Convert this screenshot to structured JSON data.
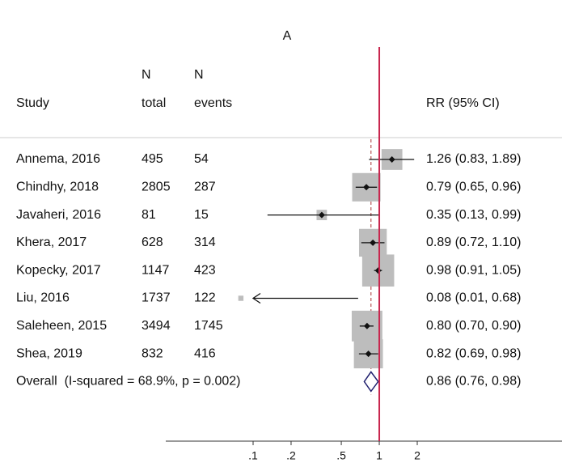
{
  "chart_data": {
    "type": "forest",
    "title": "A",
    "columns": [
      {
        "lines": [
          "Study"
        ]
      },
      {
        "lines": [
          "N",
          "total"
        ]
      },
      {
        "lines": [
          "N",
          "events"
        ]
      },
      {
        "lines": [
          "RR (95% CI)"
        ]
      }
    ],
    "studies": [
      "Annema, 2016",
      "Chindhy, 2018",
      "Javaheri, 2016",
      "Khera, 2017",
      "Kopecky, 2017",
      "Liu, 2016",
      "Saleheen, 2015",
      "Shea, 2019"
    ],
    "totals": [
      495,
      2805,
      81,
      628,
      1147,
      1737,
      3494,
      832
    ],
    "events": [
      54,
      287,
      15,
      314,
      423,
      122,
      1745,
      416
    ],
    "values": [
      1.26,
      0.79,
      0.35,
      0.89,
      0.98,
      0.08,
      0.8,
      0.82
    ],
    "lower": [
      0.83,
      0.65,
      0.13,
      0.72,
      0.91,
      0.01,
      0.7,
      0.69
    ],
    "upper": [
      1.89,
      0.96,
      0.99,
      1.1,
      1.05,
      0.68,
      0.9,
      0.98
    ],
    "value_labels": [
      "1.26 (0.83, 1.89)",
      "0.79 (0.65, 0.96)",
      "0.35 (0.13, 0.99)",
      "0.89 (0.72, 1.10)",
      "0.98 (0.91, 1.05)",
      "0.08 (0.01, 0.68)",
      "0.80 (0.70, 0.90)",
      "0.82 (0.69, 0.98)"
    ],
    "overall": {
      "label": "Overall  (I-squared = 68.9%, p = 0.002)",
      "value": 0.86,
      "lower": 0.76,
      "upper": 0.98,
      "value_label": "0.86 (0.76, 0.98)"
    },
    "log_scale": true,
    "xlim": [
      0.1,
      2
    ],
    "xticks": [
      {
        "value": 0.1,
        "label": ".1"
      },
      {
        "value": 0.2,
        "label": ".2"
      },
      {
        "value": 0.5,
        "label": ".5"
      },
      1,
      2
    ],
    "null_line": 1,
    "null_line_color": "#c8264e",
    "box_color": "#bdbdbd",
    "diamond_color": "#1f1f6e"
  }
}
